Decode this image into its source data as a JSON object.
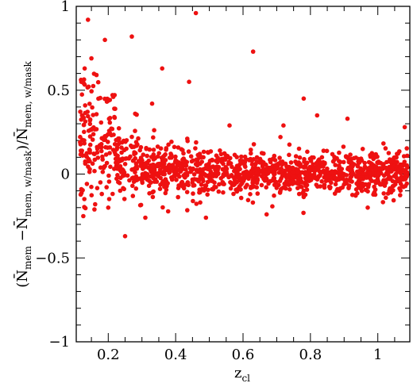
{
  "chart_data": {
    "type": "scatter",
    "title": "",
    "xlabel": {
      "main": "z",
      "sub": "cl"
    },
    "ylabel": "(N̄mem − N̄mem, w/mask)/N̄mem, w/mask",
    "ylabel_parts": {
      "open": "(",
      "n1": "N̄",
      "sub1": "mem",
      "minus": " −",
      "n2": "N̄",
      "sub2": "mem, w/mask",
      "close": ")/",
      "n3": "N̄",
      "sub3": "mem, w/mask"
    },
    "xlim": [
      0.105,
      1.095
    ],
    "ylim": [
      -1,
      1
    ],
    "xticks": [
      0.2,
      0.4,
      0.6,
      0.8,
      1.0
    ],
    "xtick_labels": [
      "0.2",
      "0.4",
      "0.6",
      "0.8",
      "1"
    ],
    "yticks": [
      -1,
      -0.5,
      0,
      0.5,
      1
    ],
    "ytick_labels": [
      "−1",
      "−0.5",
      "0",
      "0.5",
      "1"
    ],
    "grid": false,
    "marker_color": "#ee1111",
    "point_count": 1400,
    "points_shown": [
      [
        0.14,
        0.92
      ],
      [
        0.46,
        0.96
      ],
      [
        0.27,
        0.82
      ],
      [
        0.19,
        0.8
      ],
      [
        0.63,
        0.73
      ],
      [
        0.36,
        0.63
      ],
      [
        0.15,
        0.69
      ],
      [
        0.13,
        0.63
      ],
      [
        0.12,
        0.55
      ],
      [
        0.44,
        0.55
      ],
      [
        0.25,
        -0.37
      ],
      [
        0.31,
        -0.26
      ],
      [
        0.49,
        -0.26
      ],
      [
        0.67,
        -0.24
      ],
      [
        0.2,
        -0.2
      ],
      [
        0.78,
        0.45
      ],
      [
        0.82,
        0.35
      ],
      [
        0.33,
        0.42
      ],
      [
        0.28,
        0.36
      ],
      [
        0.91,
        0.33
      ],
      [
        1.08,
        0.28
      ],
      [
        0.56,
        0.29
      ],
      [
        0.12,
        -0.09
      ],
      [
        0.72,
        0.29
      ],
      [
        0.97,
        -0.2
      ]
    ]
  }
}
